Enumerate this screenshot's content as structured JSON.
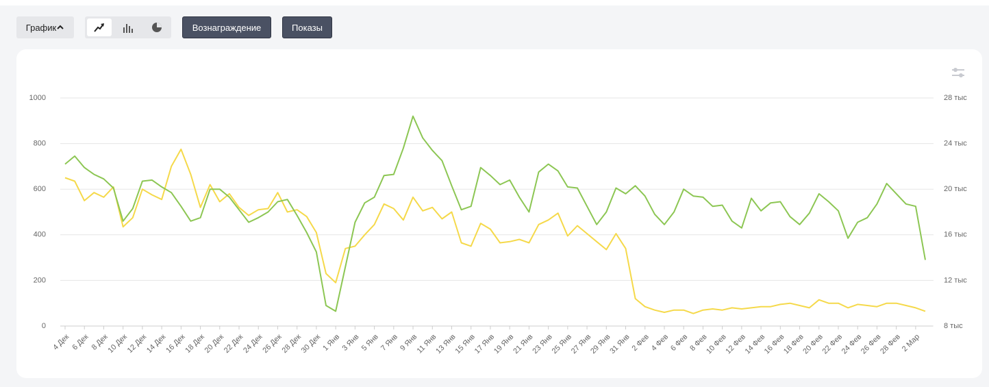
{
  "controls": {
    "view": "График"
  },
  "chart_data": {
    "type": "line",
    "categories": [
      "4 Дек",
      null,
      "6 Дек",
      null,
      "8 Дек",
      null,
      "10 Дек",
      null,
      "12 Дек",
      null,
      "14 Дек",
      null,
      "16 Дек",
      null,
      "18 Дек",
      null,
      "20 Дек",
      null,
      "22 Дек",
      null,
      "24 Дек",
      null,
      "26 Дек",
      null,
      "28 Дек",
      null,
      "30 Дек",
      null,
      "1 Янв",
      null,
      "3 Янв",
      null,
      "5 Янв",
      null,
      "7 Янв",
      null,
      "9 Янв",
      null,
      "11 Янв",
      null,
      "13 Янв",
      null,
      "15 Янв",
      null,
      "17 Янв",
      null,
      "19 Янв",
      null,
      "21 Янв",
      null,
      "23 Янв",
      null,
      "25 Янв",
      null,
      "27 Янв",
      null,
      "29 Янв",
      null,
      "31 Янв",
      null,
      "2 Фев",
      null,
      "4 Фев",
      null,
      "6 Фев",
      null,
      "8 Фев",
      null,
      "10 Фев",
      null,
      "12 Фев",
      null,
      "14 Фев",
      null,
      "16 Фев",
      null,
      "18 Фев",
      null,
      "20 Фев",
      null,
      "22 Фев",
      null,
      "24 Фев",
      null,
      "26 Фев",
      null,
      "28 Фев",
      null,
      "2 Мар",
      null
    ],
    "series": [
      {
        "name": "Вознаграждение",
        "color": "#f5d94a",
        "axis": "y",
        "values": [
          650,
          635,
          550,
          585,
          565,
          610,
          435,
          475,
          600,
          575,
          555,
          700,
          775,
          665,
          520,
          620,
          545,
          580,
          520,
          485,
          510,
          515,
          585,
          500,
          510,
          480,
          410,
          230,
          190,
          340,
          350,
          400,
          445,
          535,
          515,
          465,
          565,
          505,
          520,
          470,
          500,
          365,
          350,
          450,
          425,
          365,
          370,
          380,
          365,
          445,
          465,
          495,
          395,
          440,
          405,
          370,
          335,
          405,
          340,
          120,
          85,
          70,
          60,
          70,
          70,
          55,
          70,
          75,
          70,
          80,
          75,
          80,
          85,
          85,
          95,
          100,
          90,
          80,
          115,
          100,
          100,
          80,
          95,
          90,
          85,
          100,
          100,
          90,
          80,
          65
        ]
      },
      {
        "name": "Показы",
        "color": "#8cc653",
        "axis": "y2",
        "values": [
          22200,
          22900,
          21900,
          21300,
          20900,
          20100,
          17200,
          18300,
          20700,
          20800,
          20200,
          19700,
          18500,
          17200,
          17500,
          20000,
          20000,
          19300,
          18200,
          17100,
          17500,
          18000,
          18900,
          19100,
          17700,
          16200,
          14500,
          9800,
          9300,
          13200,
          17100,
          18800,
          19300,
          21200,
          21300,
          23600,
          26400,
          24500,
          23400,
          22500,
          20300,
          18200,
          18500,
          21900,
          21200,
          20400,
          20800,
          19300,
          18000,
          21500,
          22200,
          21600,
          20200,
          20100,
          18500,
          16900,
          18000,
          20100,
          19600,
          20300,
          19400,
          17800,
          16900,
          18000,
          20000,
          19400,
          19300,
          18500,
          18600,
          17200,
          16600,
          19200,
          18100,
          18800,
          18900,
          17600,
          16900,
          17900,
          19600,
          18900,
          18100,
          15700,
          17100,
          17500,
          18700,
          20500,
          19600,
          18700,
          18500,
          13800
        ]
      }
    ],
    "ylim": [
      0,
      1000
    ],
    "yticks": [
      0,
      200,
      400,
      600,
      800,
      1000
    ],
    "y2lim": [
      8000,
      28000
    ],
    "y2ticks": [
      {
        "value": 8000,
        "label": "8 тыс"
      },
      {
        "value": 12000,
        "label": "12 тыс"
      },
      {
        "value": 16000,
        "label": "16 тыс"
      },
      {
        "value": 20000,
        "label": "20 тыс"
      },
      {
        "value": 24000,
        "label": "24 тыс"
      },
      {
        "value": 28000,
        "label": "28 тыс"
      }
    ],
    "grid": true
  }
}
